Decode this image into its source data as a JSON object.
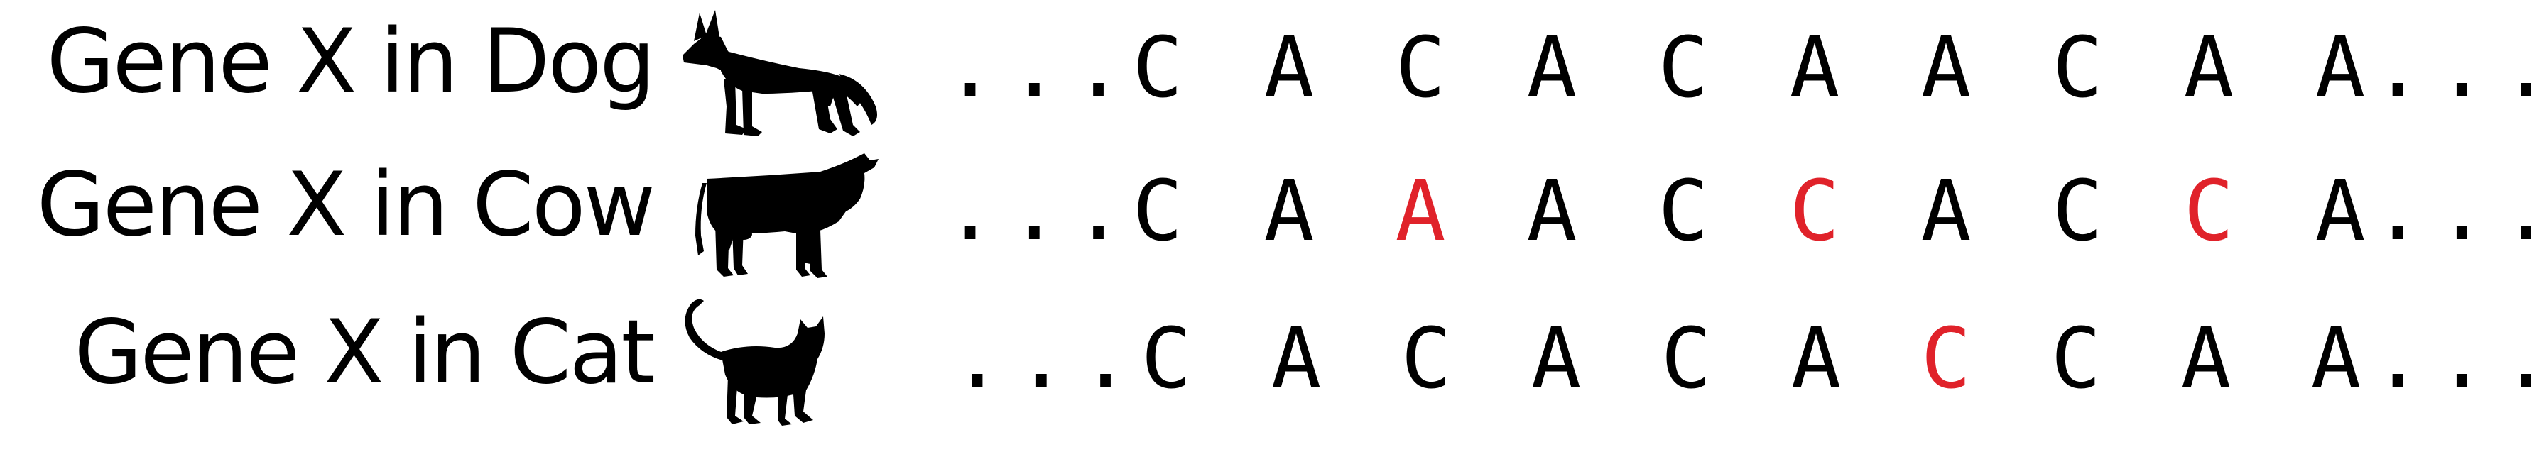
{
  "colors": {
    "text": "#000000",
    "mismatch": "#e0222a"
  },
  "ellipsis": "...",
  "rows": [
    {
      "label": "Gene X in Dog",
      "animal_icon": "dog-silhouette-icon",
      "bases": [
        {
          "b": "C",
          "diff": false
        },
        {
          "b": "A",
          "diff": false
        },
        {
          "b": "C",
          "diff": false
        },
        {
          "b": "A",
          "diff": false
        },
        {
          "b": "C",
          "diff": false
        },
        {
          "b": "A",
          "diff": false
        },
        {
          "b": "A",
          "diff": false
        },
        {
          "b": "C",
          "diff": false
        },
        {
          "b": "A",
          "diff": false
        },
        {
          "b": "A",
          "diff": false
        }
      ]
    },
    {
      "label": "Gene X in Cow",
      "animal_icon": "cow-silhouette-icon",
      "bases": [
        {
          "b": "C",
          "diff": false
        },
        {
          "b": "A",
          "diff": false
        },
        {
          "b": "A",
          "diff": true
        },
        {
          "b": "A",
          "diff": false
        },
        {
          "b": "C",
          "diff": false
        },
        {
          "b": "C",
          "diff": true
        },
        {
          "b": "A",
          "diff": false
        },
        {
          "b": "C",
          "diff": false
        },
        {
          "b": "C",
          "diff": true
        },
        {
          "b": "A",
          "diff": false
        }
      ]
    },
    {
      "label": "Gene X in Cat",
      "animal_icon": "cat-silhouette-icon",
      "bases": [
        {
          "b": "C",
          "diff": false
        },
        {
          "b": "A",
          "diff": false
        },
        {
          "b": "C",
          "diff": false
        },
        {
          "b": "A",
          "diff": false
        },
        {
          "b": "C",
          "diff": false
        },
        {
          "b": "A",
          "diff": false
        },
        {
          "b": "C",
          "diff": true
        },
        {
          "b": "C",
          "diff": false
        },
        {
          "b": "A",
          "diff": false
        },
        {
          "b": "A",
          "diff": false
        }
      ]
    }
  ]
}
